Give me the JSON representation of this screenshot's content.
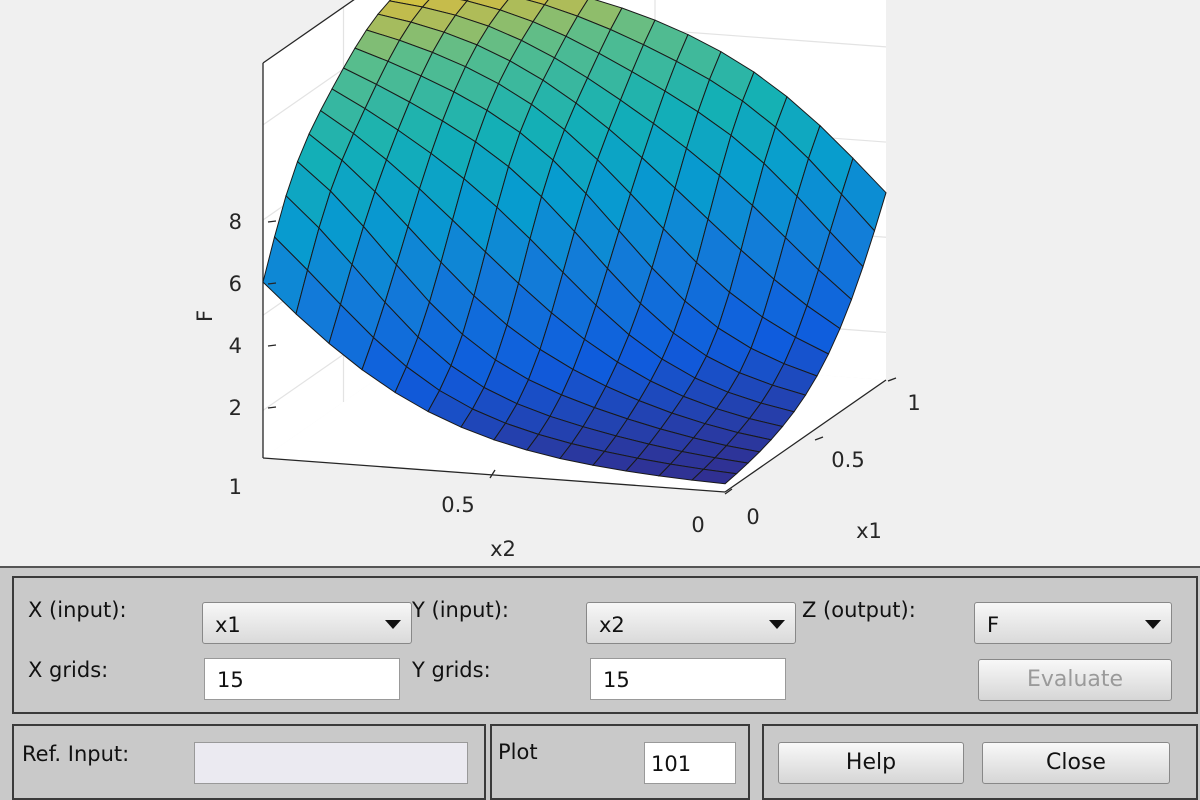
{
  "chart_data": {
    "type": "surface",
    "title": "",
    "xlabel": "x2",
    "ylabel": "x1",
    "zlabel": "F",
    "xlim": [
      0,
      1
    ],
    "ylim": [
      0,
      1
    ],
    "zlim": [
      1,
      9.3
    ],
    "x_ticks": [
      "0",
      "0.5",
      "1"
    ],
    "y_ticks": [
      "0",
      "0.5",
      "1"
    ],
    "z_ticks": [
      "2",
      "4",
      "6",
      "8"
    ],
    "z_bottom_label": "1",
    "grid": true,
    "colormap": "parula",
    "grid_points": 15,
    "approx_shape": "F rises from about 1.1 at x1=0,x2=0 to about 9 at x1=1,x2=1 with a soft sigmoid ridge along the diagonal"
  },
  "x_input": {
    "label": "X (input):",
    "value": "x1"
  },
  "y_input": {
    "label": "Y (input):",
    "value": "x2"
  },
  "z_output": {
    "label": "Z (output):",
    "value": "F"
  },
  "x_grids": {
    "label": "X grids:",
    "value": "15"
  },
  "y_grids": {
    "label": "Y grids:",
    "value": "15"
  },
  "evaluate_label": "Evaluate",
  "ref_input": {
    "label": "Ref. Input:",
    "value": ""
  },
  "plot_points": {
    "label": "Plot",
    "value": "101"
  },
  "help_label": "Help",
  "close_label": "Close"
}
